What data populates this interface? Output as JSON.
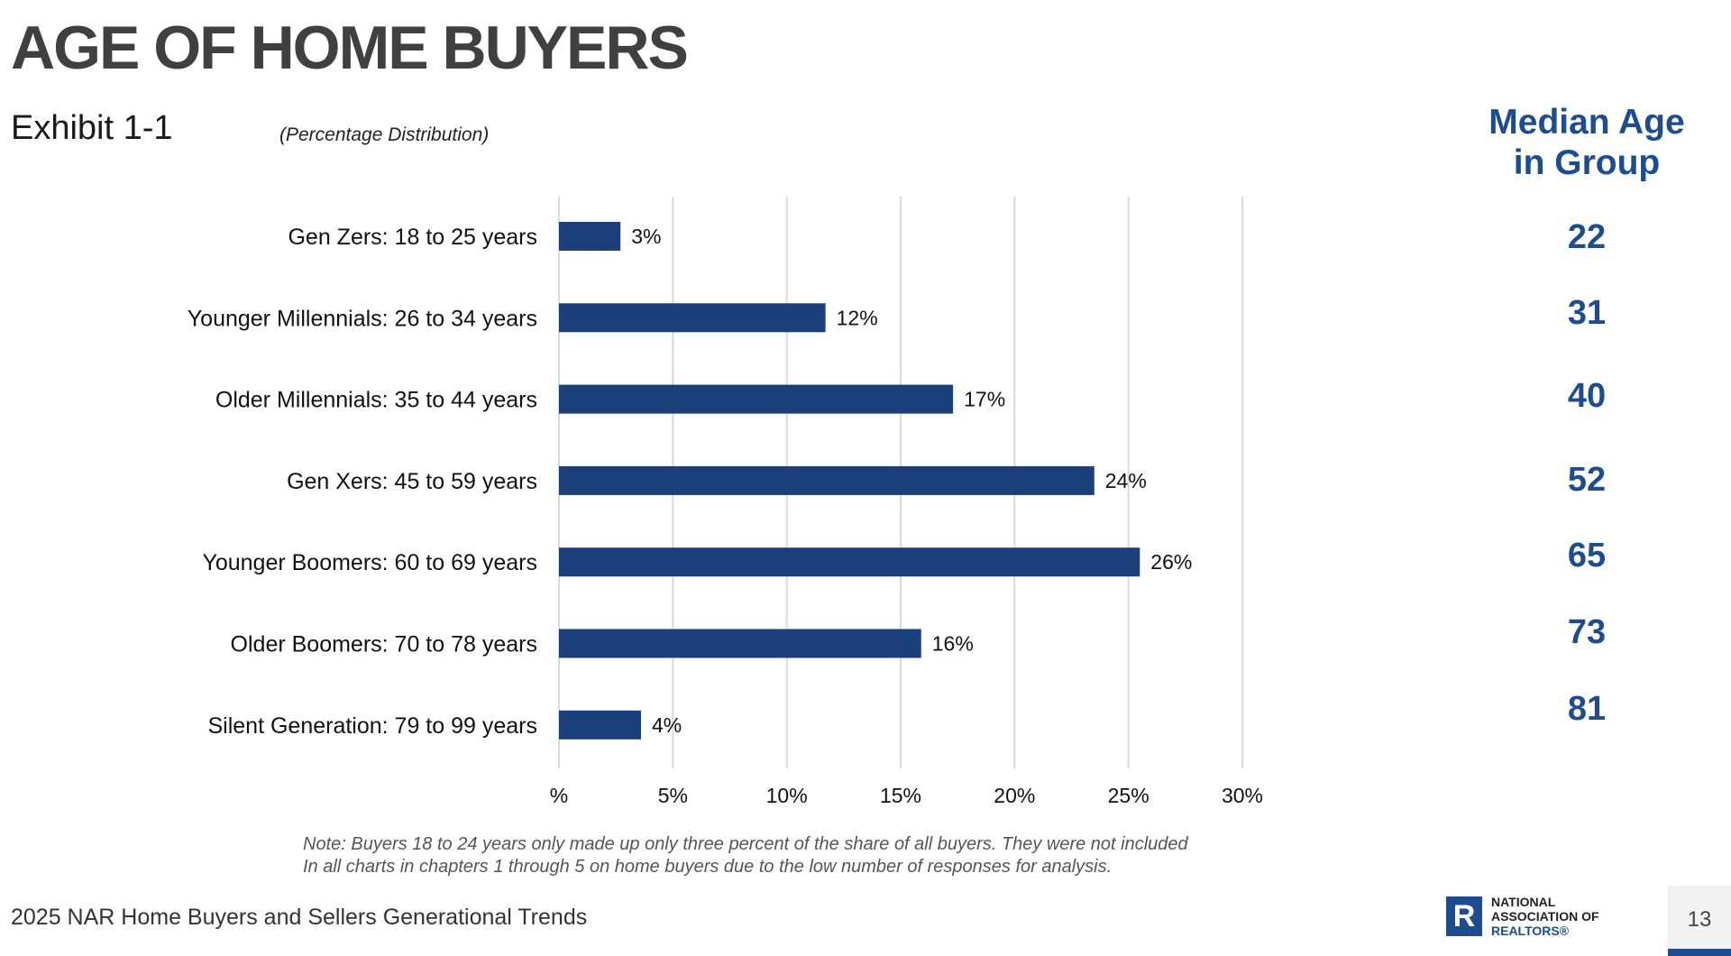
{
  "header": {
    "title": "AGE OF HOME BUYERS",
    "exhibit": "Exhibit 1-1",
    "subtitle": "(Percentage Distribution)"
  },
  "median": {
    "header_line1": "Median Age",
    "header_line2": "in Group",
    "values": [
      "22",
      "31",
      "40",
      "52",
      "65",
      "73",
      "81"
    ]
  },
  "colors": {
    "bar": "#1b3f7a",
    "accent": "#1d4d8f",
    "grid": "#d9d9d9"
  },
  "chart_data": {
    "type": "bar",
    "orientation": "horizontal",
    "categories": [
      "Gen Zers: 18 to 25 years",
      "Younger Millennials: 26 to 34 years",
      "Older Millennials: 35 to 44 years",
      "Gen Xers: 45 to 59 years",
      "Younger Boomers: 60 to 69 years",
      "Older Boomers: 70 to 78 years",
      "Silent Generation: 79 to 99 years"
    ],
    "values": [
      2.7,
      11.7,
      17.3,
      23.5,
      25.5,
      15.9,
      3.6
    ],
    "data_labels": [
      "3%",
      "12%",
      "17%",
      "24%",
      "26%",
      "16%",
      "4%"
    ],
    "xlim": [
      0,
      30
    ],
    "ticks": [
      0,
      5,
      10,
      15,
      20,
      25,
      30
    ],
    "tick_labels": [
      "%",
      "5%",
      "10%",
      "15%",
      "20%",
      "25%",
      "30%"
    ],
    "grid": true
  },
  "note": {
    "line1": "Note: Buyers 18 to 24 years only made up only three percent of the share of all buyers. They were not included",
    "line2": "In all charts in chapters 1 through 5 on home buyers due to the low number of responses for analysis."
  },
  "footer": {
    "left": "2025 NAR Home Buyers and Sellers Generational Trends",
    "logo_mark": "R",
    "logo_line1": "NATIONAL",
    "logo_line2": "ASSOCIATION OF",
    "logo_line3": "REALTORS®",
    "page_number": "13"
  }
}
